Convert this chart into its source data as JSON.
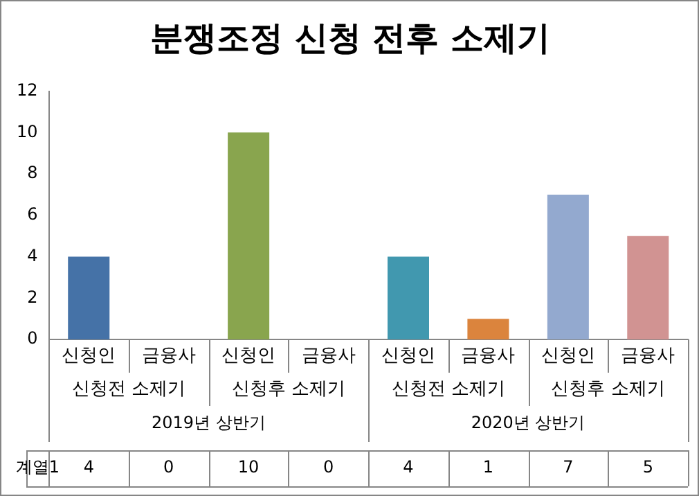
{
  "chart_data": {
    "type": "bar",
    "title": "분쟁조정 신청 전후 소제기",
    "categories": [
      "신청인",
      "금융사",
      "신청인",
      "금융사",
      "신청인",
      "금융사",
      "신청인",
      "금융사"
    ],
    "series": [
      {
        "name": "계열1",
        "colors": [
          "#4572a7",
          "#aa4643",
          "#89a54e",
          "#71588f",
          "#4198af",
          "#db843d",
          "#93a9cf",
          "#d19392"
        ],
        "values": [
          4,
          0,
          10,
          0,
          4,
          1,
          7,
          5
        ]
      }
    ],
    "ylim": [
      0,
      12
    ],
    "yticks": [
      0,
      2,
      4,
      6,
      8,
      10,
      12
    ],
    "grid": false,
    "legend": false,
    "data_labels": true,
    "annotations": [
      "신청전 소제기",
      "신청후 소제기",
      "신청전 소제기",
      "신청후 소제기",
      "2019년 상반기",
      "2020년 상반기"
    ]
  }
}
